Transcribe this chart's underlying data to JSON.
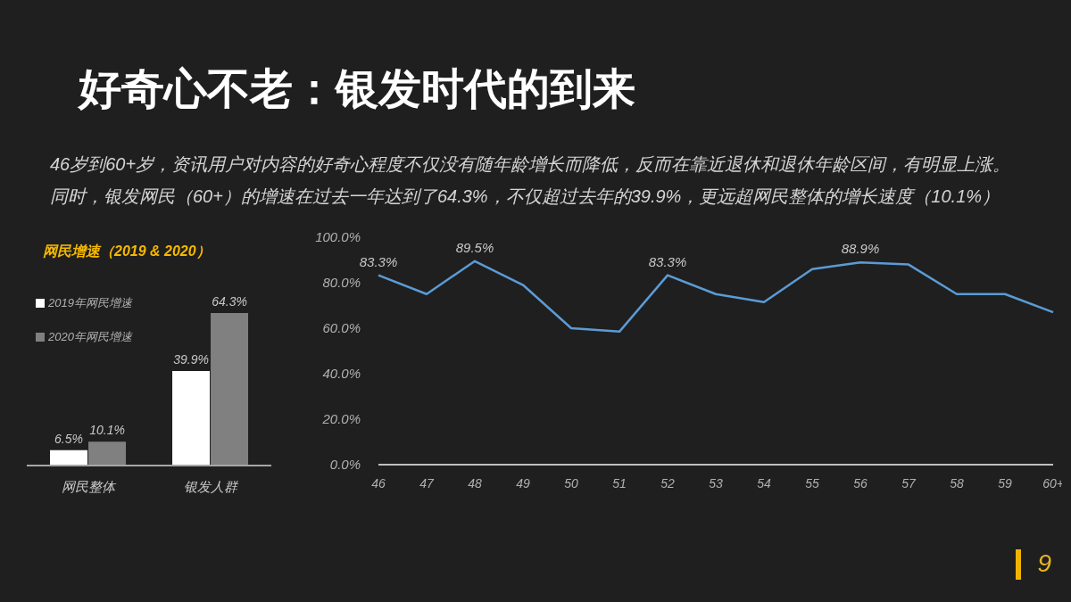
{
  "chart_data": [
    {
      "type": "other",
      "title": "好奇心不老：银发时代的到来",
      "subtitle": "46岁到60+岁，资讯用户对内容的好奇心程度不仅没有随年龄增长而降低，反而在靠近退休和退休年龄区间，有明显上涨。同时，银发网民（60+）的增速在过去一年达到了64.3%，不仅超过去年的39.9%，更远超网民整体的增长速度（10.1%）",
      "annotations": [
        "9"
      ]
    },
    {
      "type": "bar",
      "title": "网民增速（2019 & 2020）",
      "categories": [
        "网民整体",
        "银发人群"
      ],
      "series": [
        {
          "name": "2019年网民增速",
          "color": "#ffffff",
          "values": [
            6.5,
            39.9
          ],
          "value_labels": [
            "6.5%",
            "39.9%"
          ]
        },
        {
          "name": "2020年网民增速",
          "color": "#808080",
          "values": [
            10.1,
            64.3
          ],
          "value_labels": [
            "10.1%",
            "64.3%"
          ]
        }
      ],
      "legend": "top left",
      "tick_labels": "x"
    },
    {
      "type": "line",
      "categories": [
        "46",
        "47",
        "48",
        "49",
        "50",
        "51",
        "52",
        "53",
        "54",
        "55",
        "56",
        "57",
        "58",
        "59",
        "60+"
      ],
      "values": [
        83.3,
        75,
        89.5,
        79,
        60,
        58.5,
        83.3,
        75,
        71.5,
        86,
        88.9,
        88,
        75,
        75,
        67
      ],
      "color": "#5b9bd5",
      "value_labels": [
        "83.3%",
        null,
        "89.5%",
        null,
        null,
        null,
        "83.3%",
        null,
        null,
        null,
        "88.9%",
        null,
        null,
        null,
        null
      ],
      "ylim": [
        0,
        100
      ],
      "yticks": [
        {
          "value": 0,
          "label": "0.0%"
        },
        {
          "value": 20,
          "label": "20.0%"
        },
        {
          "value": 40,
          "label": "40.0%"
        },
        {
          "value": 60,
          "label": "60.0%"
        },
        {
          "value": 80,
          "label": "80.0%"
        },
        {
          "value": 100,
          "label": "100.0%"
        }
      ],
      "marker": "none",
      "line_style": "solid"
    }
  ]
}
